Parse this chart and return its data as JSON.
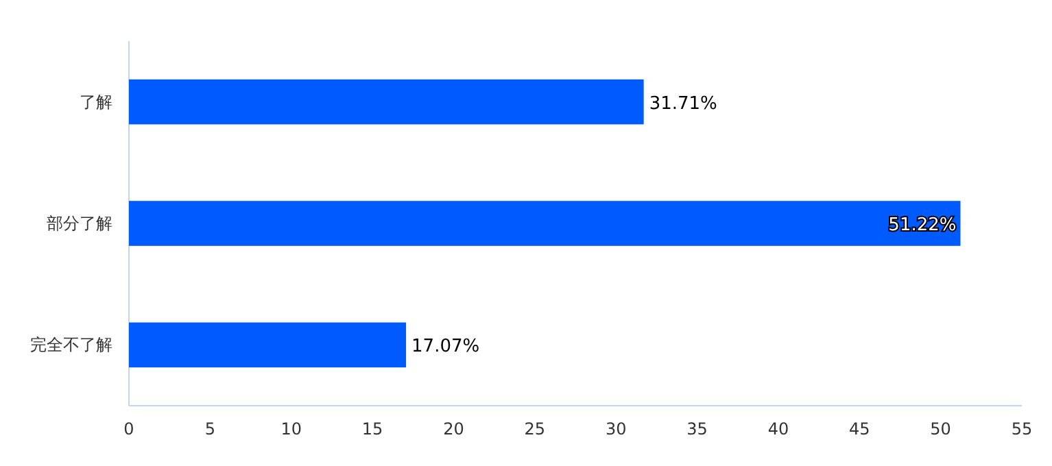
{
  "chart_data": {
    "type": "bar",
    "orientation": "horizontal",
    "categories": [
      "了解",
      "部分了解",
      "完全不了解"
    ],
    "values": [
      31.71,
      51.22,
      17.07
    ],
    "value_labels": [
      "31.71%",
      "51.22%",
      "17.07%"
    ],
    "color": "#005bff",
    "xlim": [
      0,
      55
    ],
    "xticks": [
      0,
      5,
      10,
      15,
      20,
      25,
      30,
      35,
      40,
      45,
      50,
      55
    ]
  }
}
